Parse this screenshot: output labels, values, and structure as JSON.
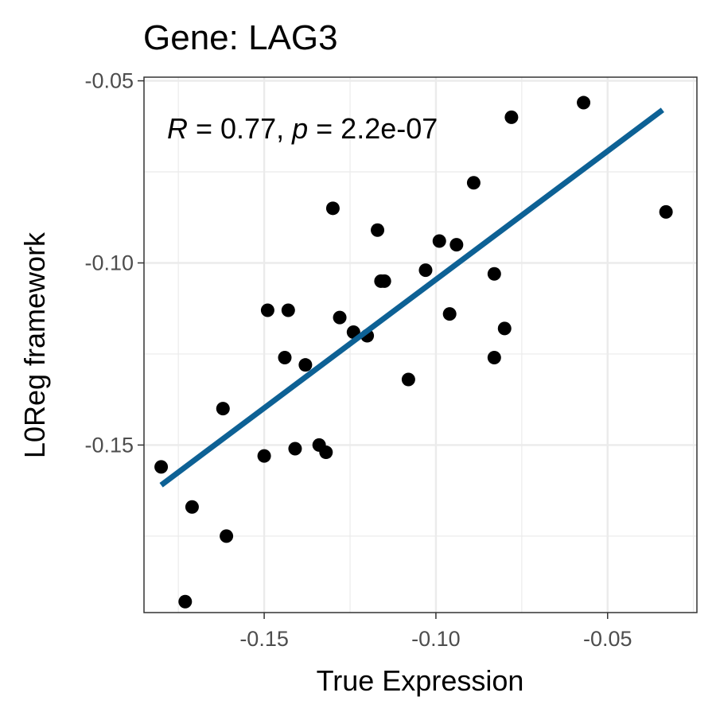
{
  "chart_data": {
    "type": "scatter",
    "title": "Gene: LAG3",
    "xlabel": "True Expression",
    "ylabel": "L0Reg framework",
    "xlim": [
      -0.185,
      -0.024
    ],
    "ylim": [
      -0.196,
      -0.049
    ],
    "x_ticks": [
      -0.15,
      -0.1,
      -0.05
    ],
    "x_tick_labels": [
      "-0.15",
      "-0.10",
      "-0.05"
    ],
    "y_ticks": [
      -0.05,
      -0.1,
      -0.15
    ],
    "y_tick_labels": [
      "-0.05",
      "-0.10",
      "-0.15"
    ],
    "grid": true,
    "annotation": {
      "r_symbol": "R",
      "r_text": " = 0.77, ",
      "p_symbol": "p",
      "p_text": " = 2.2e-07"
    },
    "points": [
      {
        "x": -0.18,
        "y": -0.156
      },
      {
        "x": -0.173,
        "y": -0.193
      },
      {
        "x": -0.171,
        "y": -0.167
      },
      {
        "x": -0.162,
        "y": -0.14
      },
      {
        "x": -0.161,
        "y": -0.175
      },
      {
        "x": -0.15,
        "y": -0.153
      },
      {
        "x": -0.149,
        "y": -0.113
      },
      {
        "x": -0.144,
        "y": -0.126
      },
      {
        "x": -0.143,
        "y": -0.113
      },
      {
        "x": -0.141,
        "y": -0.151
      },
      {
        "x": -0.138,
        "y": -0.128
      },
      {
        "x": -0.134,
        "y": -0.15
      },
      {
        "x": -0.132,
        "y": -0.152
      },
      {
        "x": -0.13,
        "y": -0.085
      },
      {
        "x": -0.128,
        "y": -0.115
      },
      {
        "x": -0.124,
        "y": -0.119
      },
      {
        "x": -0.12,
        "y": -0.12
      },
      {
        "x": -0.117,
        "y": -0.091
      },
      {
        "x": -0.116,
        "y": -0.105
      },
      {
        "x": -0.115,
        "y": -0.105
      },
      {
        "x": -0.108,
        "y": -0.132
      },
      {
        "x": -0.103,
        "y": -0.102
      },
      {
        "x": -0.099,
        "y": -0.094
      },
      {
        "x": -0.096,
        "y": -0.114
      },
      {
        "x": -0.094,
        "y": -0.095
      },
      {
        "x": -0.089,
        "y": -0.078
      },
      {
        "x": -0.083,
        "y": -0.103
      },
      {
        "x": -0.083,
        "y": -0.126
      },
      {
        "x": -0.08,
        "y": -0.118
      },
      {
        "x": -0.078,
        "y": -0.06
      },
      {
        "x": -0.057,
        "y": -0.056
      },
      {
        "x": -0.033,
        "y": -0.086
      }
    ],
    "fit_line": {
      "x": [
        -0.18,
        -0.034
      ],
      "y": [
        -0.161,
        -0.058
      ],
      "color": "#0d6195"
    },
    "point_color": "#000000",
    "grid_color": "#ebebeb",
    "panel_border_color": "#333333"
  }
}
